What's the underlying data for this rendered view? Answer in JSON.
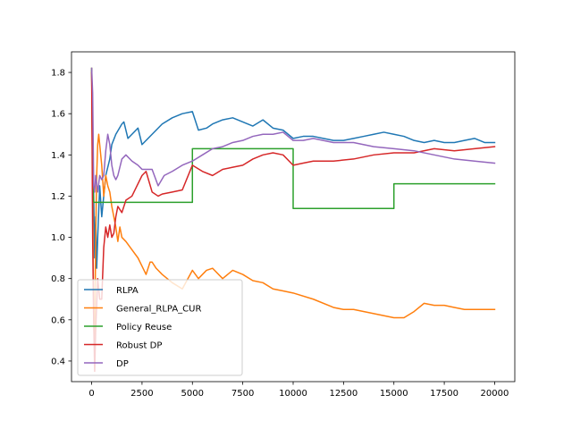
{
  "chart_data": {
    "type": "line",
    "title": "",
    "xlabel": "",
    "ylabel": "",
    "xlim": [
      -1000,
      21000
    ],
    "ylim": [
      0.3,
      1.9
    ],
    "xticks": [
      0,
      2500,
      5000,
      7500,
      10000,
      12500,
      15000,
      17500,
      20000
    ],
    "xtick_labels": [
      "0",
      "2500",
      "5000",
      "7500",
      "10000",
      "12500",
      "15000",
      "17500",
      "20000"
    ],
    "yticks": [
      0.4,
      0.6,
      0.8,
      1.0,
      1.2,
      1.4,
      1.6,
      1.8
    ],
    "ytick_labels": [
      "0.4",
      "0.6",
      "0.8",
      "1.0",
      "1.2",
      "1.4",
      "1.6",
      "1.8"
    ],
    "grid": false,
    "legend_position": "lower-left",
    "series": [
      {
        "name": "RLPA",
        "color": "#1f77b4",
        "points": [
          [
            0,
            1.81
          ],
          [
            50,
            1.5
          ],
          [
            100,
            1.2
          ],
          [
            150,
            0.9
          ],
          [
            200,
            1.1
          ],
          [
            250,
            0.85
          ],
          [
            300,
            1.0
          ],
          [
            400,
            1.25
          ],
          [
            500,
            1.1
          ],
          [
            700,
            1.3
          ],
          [
            900,
            1.38
          ],
          [
            1000,
            1.45
          ],
          [
            1200,
            1.5
          ],
          [
            1500,
            1.55
          ],
          [
            1600,
            1.56
          ],
          [
            1800,
            1.48
          ],
          [
            2000,
            1.5
          ],
          [
            2300,
            1.53
          ],
          [
            2500,
            1.45
          ],
          [
            3000,
            1.5
          ],
          [
            3500,
            1.55
          ],
          [
            4000,
            1.58
          ],
          [
            4500,
            1.6
          ],
          [
            5000,
            1.61
          ],
          [
            5300,
            1.52
          ],
          [
            5700,
            1.53
          ],
          [
            6000,
            1.55
          ],
          [
            6500,
            1.57
          ],
          [
            7000,
            1.58
          ],
          [
            7500,
            1.56
          ],
          [
            8000,
            1.54
          ],
          [
            8500,
            1.57
          ],
          [
            9000,
            1.53
          ],
          [
            9500,
            1.52
          ],
          [
            10000,
            1.48
          ],
          [
            10500,
            1.49
          ],
          [
            11000,
            1.49
          ],
          [
            11500,
            1.48
          ],
          [
            12000,
            1.47
          ],
          [
            12500,
            1.47
          ],
          [
            13000,
            1.48
          ],
          [
            13500,
            1.49
          ],
          [
            14000,
            1.5
          ],
          [
            14500,
            1.51
          ],
          [
            15000,
            1.5
          ],
          [
            15500,
            1.49
          ],
          [
            16000,
            1.47
          ],
          [
            16500,
            1.46
          ],
          [
            17000,
            1.47
          ],
          [
            17500,
            1.46
          ],
          [
            18000,
            1.46
          ],
          [
            18500,
            1.47
          ],
          [
            19000,
            1.48
          ],
          [
            19500,
            1.46
          ],
          [
            20000,
            1.46
          ]
        ]
      },
      {
        "name": "General_RLPA_CUR",
        "color": "#ff7f0e",
        "points": [
          [
            0,
            1.82
          ],
          [
            50,
            1.2
          ],
          [
            100,
            0.6
          ],
          [
            150,
            0.45
          ],
          [
            200,
            1.0
          ],
          [
            250,
            1.3
          ],
          [
            300,
            1.45
          ],
          [
            350,
            1.5
          ],
          [
            400,
            1.45
          ],
          [
            500,
            1.35
          ],
          [
            600,
            1.2
          ],
          [
            700,
            1.3
          ],
          [
            800,
            1.25
          ],
          [
            900,
            1.22
          ],
          [
            1000,
            1.15
          ],
          [
            1100,
            1.1
          ],
          [
            1200,
            1.05
          ],
          [
            1300,
            0.98
          ],
          [
            1400,
            1.05
          ],
          [
            1500,
            1.0
          ],
          [
            1700,
            0.98
          ],
          [
            2000,
            0.94
          ],
          [
            2300,
            0.9
          ],
          [
            2500,
            0.86
          ],
          [
            2700,
            0.82
          ],
          [
            2900,
            0.88
          ],
          [
            3000,
            0.88
          ],
          [
            3200,
            0.85
          ],
          [
            3500,
            0.82
          ],
          [
            4000,
            0.78
          ],
          [
            4500,
            0.75
          ],
          [
            5000,
            0.84
          ],
          [
            5300,
            0.8
          ],
          [
            5700,
            0.84
          ],
          [
            6000,
            0.85
          ],
          [
            6500,
            0.8
          ],
          [
            7000,
            0.84
          ],
          [
            7500,
            0.82
          ],
          [
            8000,
            0.79
          ],
          [
            8500,
            0.78
          ],
          [
            9000,
            0.75
          ],
          [
            9500,
            0.74
          ],
          [
            10000,
            0.73
          ],
          [
            11000,
            0.7
          ],
          [
            12000,
            0.66
          ],
          [
            12500,
            0.65
          ],
          [
            13000,
            0.65
          ],
          [
            14000,
            0.63
          ],
          [
            15000,
            0.61
          ],
          [
            15500,
            0.61
          ],
          [
            16000,
            0.64
          ],
          [
            16500,
            0.68
          ],
          [
            17000,
            0.67
          ],
          [
            17500,
            0.67
          ],
          [
            18000,
            0.66
          ],
          [
            18500,
            0.65
          ],
          [
            19000,
            0.65
          ],
          [
            19500,
            0.65
          ],
          [
            20000,
            0.65
          ]
        ]
      },
      {
        "name": "Policy Reuse",
        "color": "#2ca02c",
        "points": [
          [
            0,
            1.82
          ],
          [
            50,
            1.3
          ],
          [
            100,
            1.17
          ],
          [
            5000,
            1.17
          ],
          [
            5000,
            1.43
          ],
          [
            10000,
            1.43
          ],
          [
            10000,
            1.14
          ],
          [
            15000,
            1.14
          ],
          [
            15000,
            1.26
          ],
          [
            20000,
            1.26
          ]
        ]
      },
      {
        "name": "Robust DP",
        "color": "#d62728",
        "points": [
          [
            0,
            1.8
          ],
          [
            50,
            1.0
          ],
          [
            100,
            0.6
          ],
          [
            150,
            0.35
          ],
          [
            200,
            0.55
          ],
          [
            300,
            0.8
          ],
          [
            400,
            0.7
          ],
          [
            500,
            0.7
          ],
          [
            600,
            0.95
          ],
          [
            700,
            1.05
          ],
          [
            800,
            1.0
          ],
          [
            900,
            1.06
          ],
          [
            1000,
            1.0
          ],
          [
            1100,
            1.02
          ],
          [
            1200,
            1.1
          ],
          [
            1300,
            1.15
          ],
          [
            1500,
            1.12
          ],
          [
            1700,
            1.18
          ],
          [
            2000,
            1.2
          ],
          [
            2200,
            1.24
          ],
          [
            2500,
            1.3
          ],
          [
            2700,
            1.32
          ],
          [
            3000,
            1.22
          ],
          [
            3300,
            1.2
          ],
          [
            3500,
            1.21
          ],
          [
            4000,
            1.22
          ],
          [
            4500,
            1.23
          ],
          [
            5000,
            1.35
          ],
          [
            5500,
            1.32
          ],
          [
            6000,
            1.3
          ],
          [
            6500,
            1.33
          ],
          [
            7000,
            1.34
          ],
          [
            7500,
            1.35
          ],
          [
            8000,
            1.38
          ],
          [
            8500,
            1.4
          ],
          [
            9000,
            1.41
          ],
          [
            9500,
            1.4
          ],
          [
            10000,
            1.35
          ],
          [
            10500,
            1.36
          ],
          [
            11000,
            1.37
          ],
          [
            12000,
            1.37
          ],
          [
            13000,
            1.38
          ],
          [
            14000,
            1.4
          ],
          [
            15000,
            1.41
          ],
          [
            16000,
            1.41
          ],
          [
            17000,
            1.43
          ],
          [
            18000,
            1.42
          ],
          [
            19000,
            1.43
          ],
          [
            20000,
            1.44
          ]
        ]
      },
      {
        "name": "DP",
        "color": "#9467bd",
        "points": [
          [
            0,
            1.82
          ],
          [
            50,
            1.7
          ],
          [
            100,
            1.25
          ],
          [
            150,
            1.22
          ],
          [
            200,
            1.3
          ],
          [
            300,
            1.22
          ],
          [
            400,
            1.3
          ],
          [
            500,
            1.28
          ],
          [
            600,
            1.3
          ],
          [
            700,
            1.42
          ],
          [
            800,
            1.5
          ],
          [
            900,
            1.45
          ],
          [
            1000,
            1.35
          ],
          [
            1100,
            1.3
          ],
          [
            1200,
            1.28
          ],
          [
            1300,
            1.3
          ],
          [
            1500,
            1.38
          ],
          [
            1700,
            1.4
          ],
          [
            2000,
            1.37
          ],
          [
            2300,
            1.35
          ],
          [
            2500,
            1.33
          ],
          [
            3000,
            1.33
          ],
          [
            3300,
            1.25
          ],
          [
            3600,
            1.3
          ],
          [
            4000,
            1.32
          ],
          [
            4500,
            1.35
          ],
          [
            5000,
            1.37
          ],
          [
            5500,
            1.4
          ],
          [
            6000,
            1.43
          ],
          [
            6500,
            1.44
          ],
          [
            7000,
            1.46
          ],
          [
            7500,
            1.47
          ],
          [
            8000,
            1.49
          ],
          [
            8500,
            1.5
          ],
          [
            9000,
            1.5
          ],
          [
            9500,
            1.51
          ],
          [
            10000,
            1.47
          ],
          [
            10500,
            1.47
          ],
          [
            11000,
            1.48
          ],
          [
            12000,
            1.46
          ],
          [
            13000,
            1.46
          ],
          [
            14000,
            1.44
          ],
          [
            15000,
            1.43
          ],
          [
            16000,
            1.42
          ],
          [
            17000,
            1.4
          ],
          [
            18000,
            1.38
          ],
          [
            19000,
            1.37
          ],
          [
            20000,
            1.36
          ]
        ]
      }
    ]
  }
}
